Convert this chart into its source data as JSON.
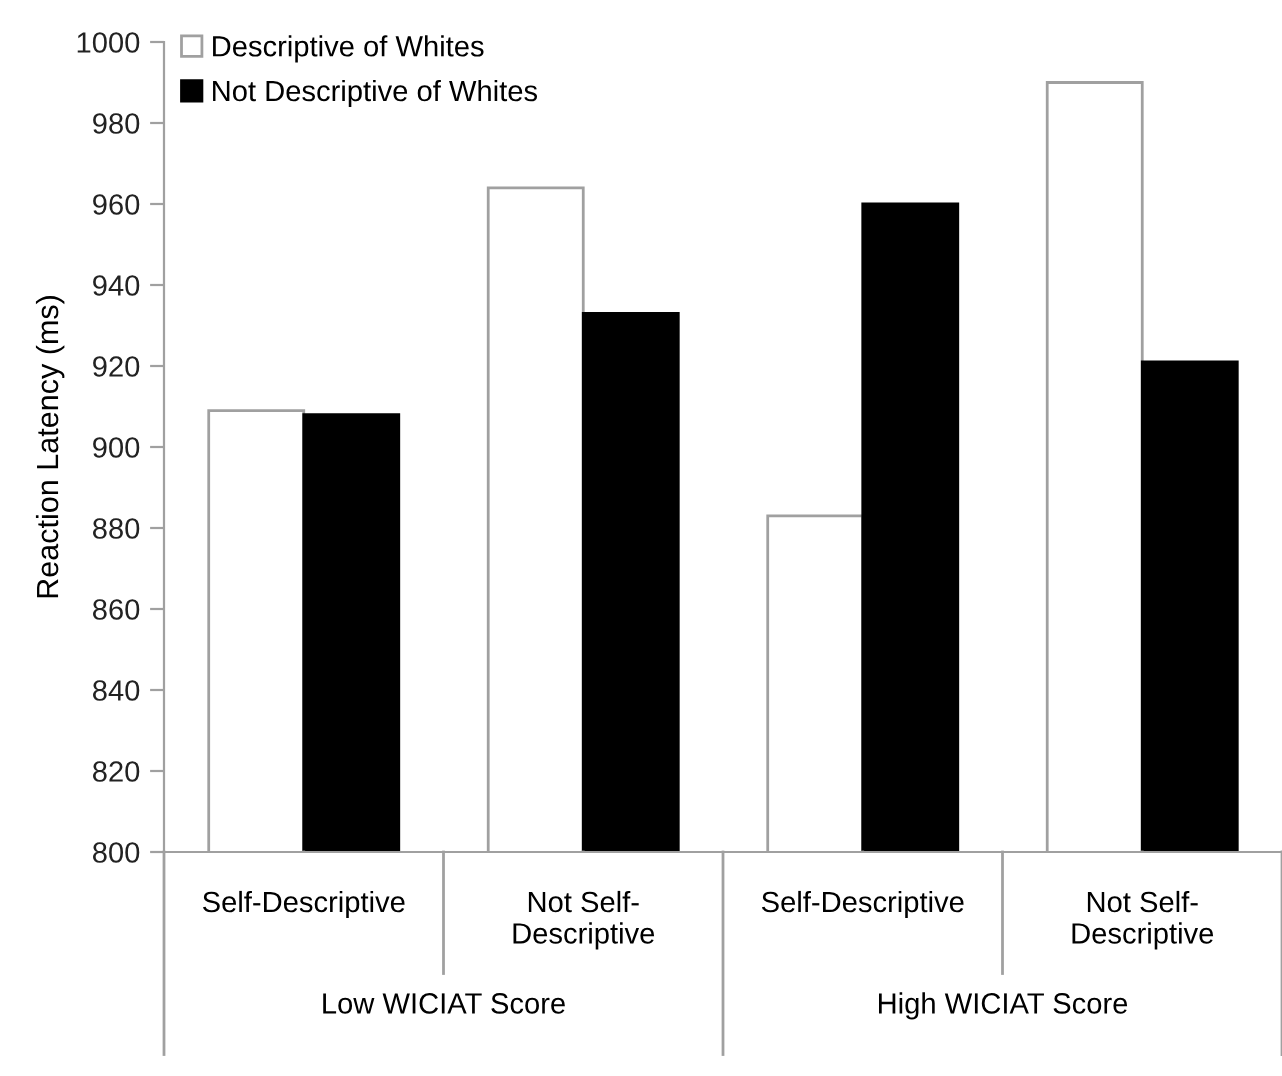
{
  "chart_data": {
    "type": "bar",
    "ylabel": "Reaction Latency (ms)",
    "categories": [
      "Self-Descriptive",
      "Not Self-\nDescriptive",
      "Self-Descriptive",
      "Not Self-\nDescriptive"
    ],
    "series": [
      {
        "name": "Descriptive of Whites",
        "color": "#ffffff",
        "values": [
          909,
          964,
          883,
          990
        ]
      },
      {
        "name": "Not Descriptive of Whites",
        "color": "#000000",
        "values": [
          908,
          933,
          960,
          921
        ]
      }
    ],
    "annotations": [
      "Low WICIAT Score",
      "High WICIAT Score"
    ],
    "ylim": [
      800,
      1000
    ],
    "yticks": [
      800,
      820,
      840,
      860,
      880,
      900,
      920,
      940,
      960,
      980,
      1000
    ],
    "legend": "top left",
    "grid": false
  }
}
